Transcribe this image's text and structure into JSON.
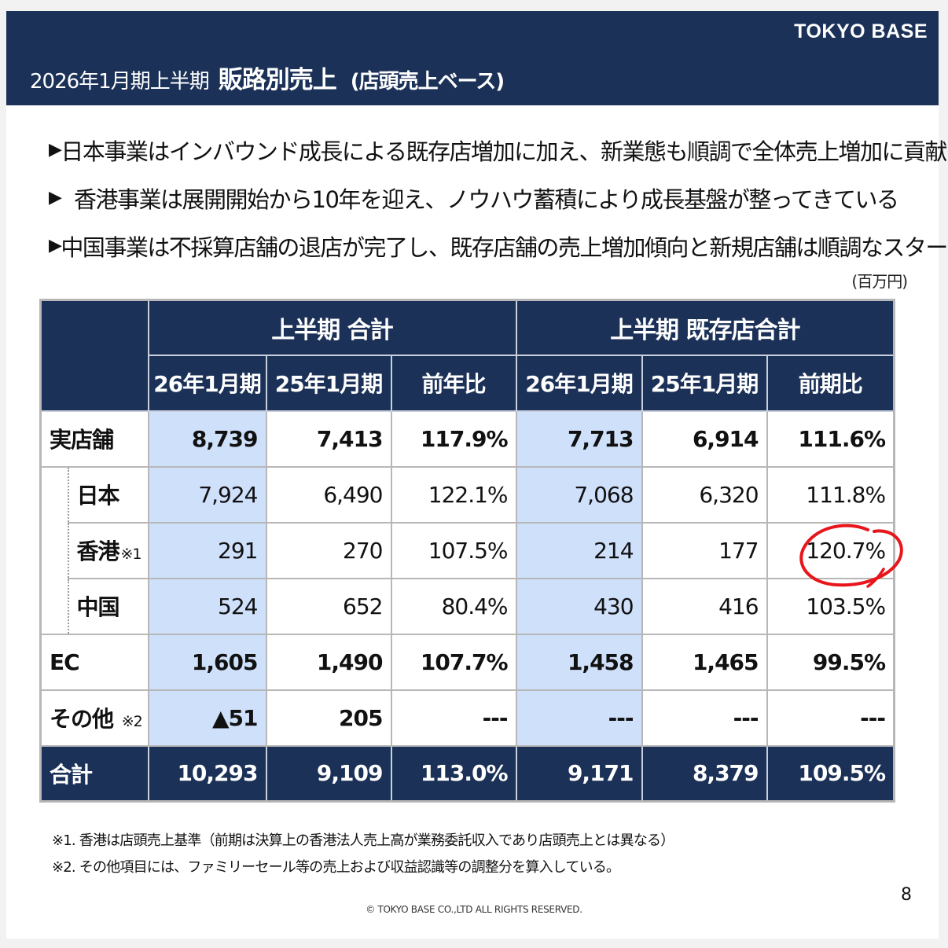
{
  "header": {
    "brand": "TOKYO BASE",
    "title_prefix": "2026年1月期上半期",
    "title_main": "販路別売上",
    "title_sub": "(店頭売上ベース)"
  },
  "bullets": [
    "日本事業はインバウンド成長による既存店増加に加え、新業態も順調で全体売上増加に貢献",
    "香港事業は展開開始から10年を迎え、ノウハウ蓄積により成長基盤が整ってきている",
    "中国事業は不採算店舗の退店が完了し、既存店舗の売上増加傾向と新規店舗は順調なスタート"
  ],
  "bullet_icon": "triangle-right-icon",
  "unit": "(百万円)",
  "table": {
    "group_headers": [
      "上半期 合計",
      "上半期 既存店合計"
    ],
    "col_headers": [
      "26年1月期",
      "25年1月期",
      "前年比",
      "26年1月期",
      "25年1月期",
      "前期比"
    ],
    "rows": [
      {
        "label": "実店舗",
        "note": "",
        "values": [
          "8,739",
          "7,413",
          "117.9%",
          "7,713",
          "6,914",
          "111.6%"
        ]
      },
      {
        "label": "日本",
        "note": "",
        "values": [
          "7,924",
          "6,490",
          "122.1%",
          "7,068",
          "6,320",
          "111.8%"
        ]
      },
      {
        "label": "香港",
        "note": "※1",
        "values": [
          "291",
          "270",
          "107.5%",
          "214",
          "177",
          "120.7%"
        ]
      },
      {
        "label": "中国",
        "note": "",
        "values": [
          "524",
          "652",
          "80.4%",
          "430",
          "416",
          "103.5%"
        ]
      },
      {
        "label": "EC",
        "note": "",
        "values": [
          "1,605",
          "1,490",
          "107.7%",
          "1,458",
          "1,465",
          "99.5%"
        ]
      },
      {
        "label": "その他",
        "note": "※2",
        "values": [
          "▲51",
          "205",
          "---",
          "---",
          "---",
          "---"
        ]
      },
      {
        "label": "合計",
        "note": "",
        "values": [
          "10,293",
          "9,109",
          "113.0%",
          "9,171",
          "8,379",
          "109.5%"
        ]
      }
    ]
  },
  "colors": {
    "navy": "#1b3157",
    "highlight": "#cfe0fb",
    "annotation_red": "#e8151b"
  },
  "notes": [
    "※1. 香港は店頭売上基準（前期は決算上の香港法人売上高が業務委託収入であり店頭売上とは異なる）",
    "※2. その他項目には、ファミリーセール等の売上および収益認識等の調整分を算入している。"
  ],
  "page_number": "8",
  "copyright": "© TOKYO BASE CO.,LTD  ALL RIGHTS RESERVED."
}
